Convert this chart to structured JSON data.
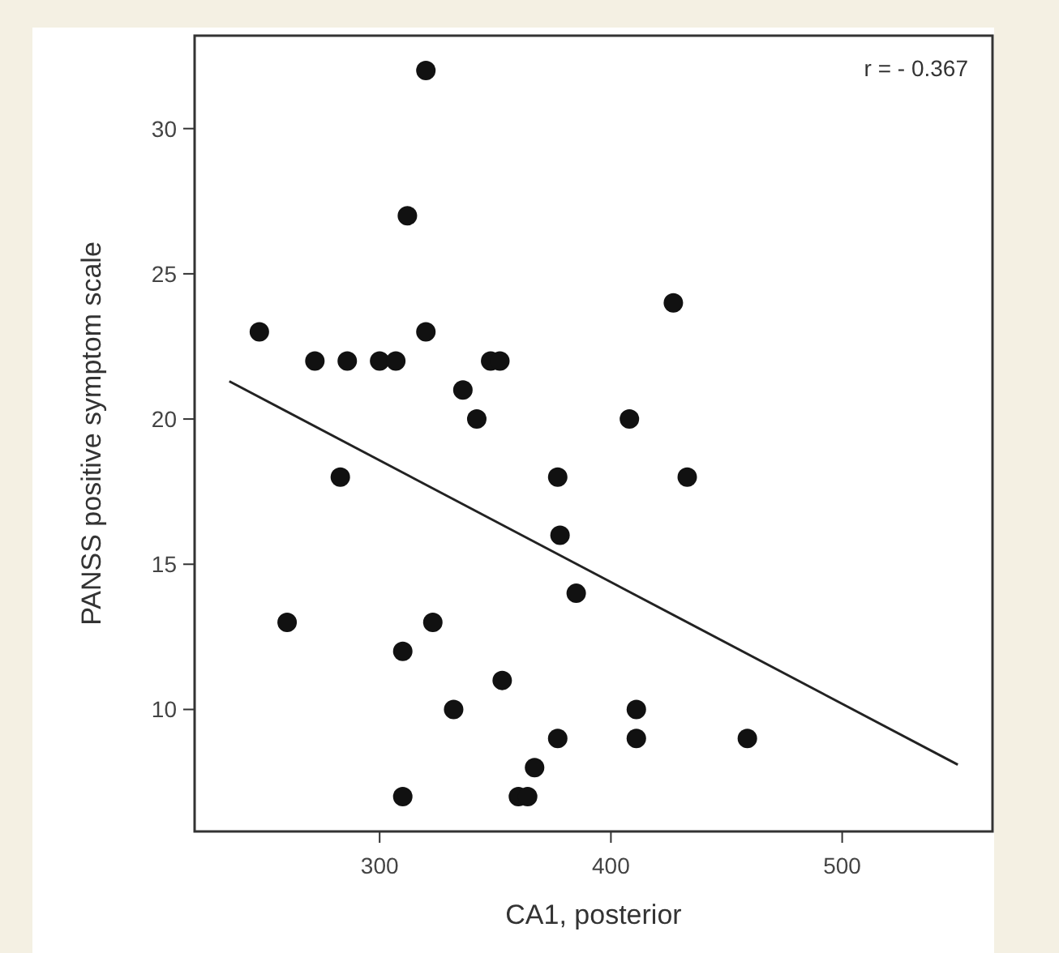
{
  "chart_data": {
    "type": "scatter",
    "xlabel": "CA1, posterior",
    "ylabel": "PANSS positive symptom scale",
    "xlim": [
      220,
      565
    ],
    "ylim": [
      5.8,
      33.2
    ],
    "xticks": [
      300,
      400,
      500
    ],
    "yticks": [
      10,
      15,
      20,
      25,
      30
    ],
    "grid": false,
    "annotations": [
      "r = - 0.367"
    ],
    "series": [
      {
        "marker": "circle",
        "color": "#111111",
        "x": [
          248,
          272,
          286,
          300,
          307,
          320,
          312,
          320,
          336,
          342,
          348,
          352,
          408,
          427,
          283,
          377,
          378,
          385,
          260,
          323,
          310,
          353,
          332,
          377,
          367,
          310,
          360,
          364,
          433,
          411,
          411,
          459
        ],
        "values": [
          23,
          22,
          22,
          22,
          22,
          32,
          27,
          23,
          21,
          20,
          22,
          22,
          20,
          24,
          18,
          18,
          16,
          14,
          13,
          13,
          12,
          11,
          10,
          9,
          8,
          7,
          7,
          7,
          18,
          10,
          9,
          9
        ]
      },
      {
        "type": "line",
        "color": "#222222",
        "line_style": "solid",
        "x": [
          235,
          550
        ],
        "values": [
          21.3,
          8.1
        ]
      }
    ]
  }
}
